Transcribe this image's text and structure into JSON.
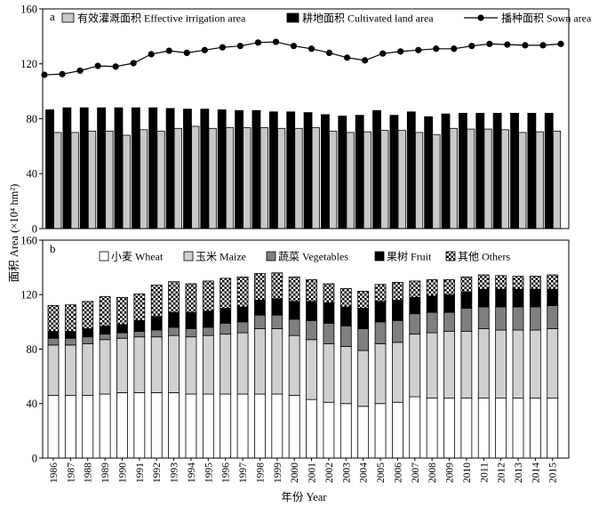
{
  "chart_data": {
    "type": "bar",
    "xlabel": "年份 Year",
    "ylabel": "面积 Area (×10⁴ hm²)",
    "x": [
      1986,
      1987,
      1988,
      1989,
      1990,
      1991,
      1992,
      1993,
      1994,
      1995,
      1996,
      1997,
      1998,
      1999,
      2000,
      2001,
      2002,
      2003,
      2004,
      2005,
      2006,
      2007,
      2008,
      2009,
      2010,
      2011,
      2012,
      2013,
      2014,
      2015
    ],
    "panels": [
      {
        "label": "a",
        "type": "bar+line",
        "stacked": false,
        "ylim": [
          0,
          160
        ],
        "yticks": [
          0,
          40,
          80,
          120,
          160
        ],
        "grid": false,
        "legend": "top",
        "series": [
          {
            "name": "有效灌溉面积 Effective irrigation area",
            "type": "bar",
            "color": "#c8c8c8",
            "values": [
              70,
              70,
              71,
              71,
              68,
              72,
              71,
              73,
              74.5,
              73,
              73.5,
              73.5,
              73.5,
              73,
              73,
              73.5,
              71,
              70,
              70.5,
              71.5,
              71.5,
              70,
              68.5,
              73,
              72.5,
              72.5,
              72,
              70,
              70.5,
              71
            ]
          },
          {
            "name": "耕地面积 Cultivated land area",
            "type": "bar",
            "color": "#000000",
            "values": [
              86.5,
              88,
              88,
              88,
              88,
              88,
              88,
              87.5,
              87,
              87,
              86.5,
              86,
              86,
              85,
              85,
              84.5,
              83,
              82,
              82.5,
              86,
              82.5,
              85,
              81.5,
              83.5,
              84,
              84,
              84,
              84,
              84,
              84
            ]
          },
          {
            "name": "播种面积 Sown area",
            "type": "line",
            "marker": "filled-circle",
            "color": "#000000",
            "values": [
              112,
              112.5,
              115,
              118.5,
              118,
              120.5,
              127,
              129.5,
              128,
              130,
              132,
              133,
              135.5,
              136,
              133,
              131,
              128,
              124.5,
              122.5,
              127.5,
              129,
              130,
              131,
              131,
              133,
              134.5,
              134,
              133.5,
              133.5,
              134.5
            ]
          }
        ]
      },
      {
        "label": "b",
        "type": "bar",
        "stacked": true,
        "ylim": [
          0,
          160
        ],
        "yticks": [
          0,
          40,
          80,
          120,
          160
        ],
        "grid": false,
        "legend": "top",
        "series": [
          {
            "name": "小麦 Wheat",
            "color": "#ffffff",
            "values": [
              46,
              46,
              46,
              47,
              48,
              48,
              48,
              48,
              47,
              47,
              47,
              47,
              47,
              47,
              46,
              43,
              41,
              40,
              38,
              40,
              41,
              45,
              44,
              44,
              44,
              44,
              44,
              44,
              44,
              44
            ]
          },
          {
            "name": "玉米 Maize",
            "color": "#d0d0d0",
            "values": [
              37,
              37,
              38,
              40,
              40,
              41,
              41,
              42,
              42,
              43,
              44,
              45,
              48,
              48,
              44,
              44,
              43,
              42,
              41,
              44,
              44,
              46,
              48,
              49,
              49,
              51,
              50,
              50,
              50,
              51
            ]
          },
          {
            "name": "蔬菜 Vegetables",
            "color": "#7f7f7f",
            "values": [
              5,
              5,
              5,
              4,
              4,
              4,
              5,
              6,
              6,
              6,
              8,
              8,
              10,
              10,
              12,
              14,
              15,
              15,
              16,
              16,
              16,
              15,
              15,
              14,
              17,
              16,
              17,
              17,
              17,
              17
            ]
          },
          {
            "name": "果树 Fruit",
            "color": "#000000",
            "values": [
              5,
              5,
              6,
              6,
              6,
              8,
              10,
              11,
              12,
              12,
              11,
              11,
              11,
              12,
              13,
              14,
              15,
              14,
              15,
              15,
              15,
              12,
              12,
              13,
              12,
              13,
              13,
              13,
              13,
              12
            ]
          },
          {
            "name": "其他 Others",
            "color": "#000000",
            "pattern": "checkerboard",
            "values": [
              19,
              19.5,
              20,
              21.5,
              20,
              19.5,
              23,
              22.5,
              21,
              22,
              22,
              22,
              19.5,
              19,
              18,
              16,
              14,
              13.5,
              12.5,
              12.5,
              13,
              12,
              12,
              11,
              11,
              10.5,
              10,
              9.5,
              9.5,
              10.5
            ]
          }
        ]
      }
    ]
  }
}
